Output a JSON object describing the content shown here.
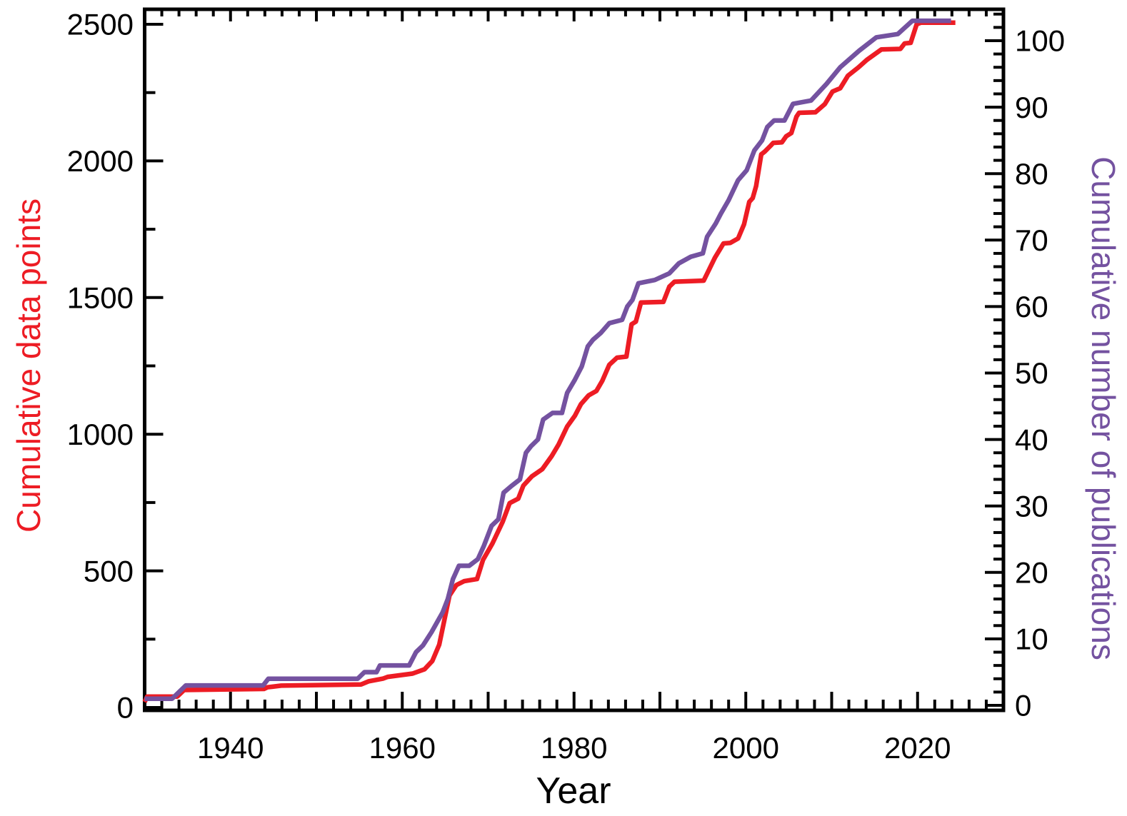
{
  "chart_data": {
    "type": "line",
    "title": "",
    "xlabel": "Year",
    "x_axis": {
      "range": [
        1930,
        2030
      ],
      "labeled_ticks": [
        1940,
        1960,
        1980,
        2000,
        2020
      ],
      "decade_tick_step": 10,
      "minor_tick_step": 2
    },
    "left_axis": {
      "label": "Cumulative data points",
      "color": "#ed1c24",
      "range": [
        0,
        2500
      ],
      "ticks": [
        0,
        500,
        1000,
        1500,
        2000,
        2500
      ],
      "minor_tick_step": 250
    },
    "right_axis": {
      "label": "Cumulative number of publications",
      "color": "#7452a0",
      "range": [
        0,
        104.5
      ],
      "ticks": [
        0,
        10,
        20,
        30,
        40,
        50,
        60,
        70,
        80,
        90,
        100
      ],
      "minor_tick_step": 2
    },
    "grid": false,
    "legend": "none",
    "series": [
      {
        "name": "Cumulative data points",
        "axis": "left",
        "color": "#ed1c24",
        "points": [
          [
            1930.0,
            20
          ],
          [
            1930.3,
            40
          ],
          [
            1933.8,
            40
          ],
          [
            1934.6,
            64
          ],
          [
            1943.9,
            68
          ],
          [
            1944.3,
            74
          ],
          [
            1945.9,
            80
          ],
          [
            1955.2,
            84
          ],
          [
            1956.1,
            96
          ],
          [
            1957.8,
            106
          ],
          [
            1958.3,
            112
          ],
          [
            1961.2,
            124
          ],
          [
            1962.6,
            140
          ],
          [
            1963.5,
            170
          ],
          [
            1964.3,
            230
          ],
          [
            1965.5,
            410
          ],
          [
            1966.3,
            448
          ],
          [
            1967.2,
            462
          ],
          [
            1968.7,
            470
          ],
          [
            1969.4,
            540
          ],
          [
            1970.5,
            600
          ],
          [
            1971.7,
            680
          ],
          [
            1972.5,
            748
          ],
          [
            1973.5,
            764
          ],
          [
            1974.1,
            812
          ],
          [
            1975.1,
            846
          ],
          [
            1976.3,
            872
          ],
          [
            1977.4,
            920
          ],
          [
            1978.2,
            962
          ],
          [
            1979.2,
            1028
          ],
          [
            1980.1,
            1068
          ],
          [
            1980.8,
            1110
          ],
          [
            1981.7,
            1142
          ],
          [
            1982.6,
            1158
          ],
          [
            1983.3,
            1196
          ],
          [
            1984.1,
            1254
          ],
          [
            1985.0,
            1280
          ],
          [
            1986.1,
            1284
          ],
          [
            1986.7,
            1402
          ],
          [
            1987.2,
            1412
          ],
          [
            1987.8,
            1482
          ],
          [
            1990.4,
            1484
          ],
          [
            1991.1,
            1540
          ],
          [
            1991.7,
            1558
          ],
          [
            1995.1,
            1562
          ],
          [
            1996.4,
            1646
          ],
          [
            1997.1,
            1682
          ],
          [
            1997.4,
            1698
          ],
          [
            1998.2,
            1700
          ],
          [
            1999.1,
            1716
          ],
          [
            1999.8,
            1768
          ],
          [
            2000.4,
            1850
          ],
          [
            2000.8,
            1864
          ],
          [
            2001.2,
            1908
          ],
          [
            2001.8,
            2024
          ],
          [
            2002.2,
            2034
          ],
          [
            2002.9,
            2056
          ],
          [
            2003.2,
            2066
          ],
          [
            2004.2,
            2068
          ],
          [
            2004.7,
            2090
          ],
          [
            2005.3,
            2102
          ],
          [
            2005.9,
            2162
          ],
          [
            2006.2,
            2176
          ],
          [
            2008.1,
            2178
          ],
          [
            2009.2,
            2208
          ],
          [
            2010.1,
            2254
          ],
          [
            2011.0,
            2266
          ],
          [
            2011.9,
            2312
          ],
          [
            2013.1,
            2342
          ],
          [
            2014.1,
            2370
          ],
          [
            2015.8,
            2408
          ],
          [
            2018.0,
            2410
          ],
          [
            2018.5,
            2430
          ],
          [
            2019.2,
            2432
          ],
          [
            2019.9,
            2500
          ],
          [
            2020.4,
            2506
          ],
          [
            2024.4,
            2506
          ]
        ]
      },
      {
        "name": "Cumulative number of publications",
        "axis": "right",
        "color": "#7452a0",
        "points": [
          [
            1930.0,
            1
          ],
          [
            1933.2,
            1
          ],
          [
            1934.8,
            3
          ],
          [
            1943.8,
            3
          ],
          [
            1944.4,
            4
          ],
          [
            1954.8,
            4
          ],
          [
            1955.6,
            5
          ],
          [
            1957.0,
            5
          ],
          [
            1957.4,
            6
          ],
          [
            1960.8,
            6
          ],
          [
            1961.6,
            8
          ],
          [
            1962.4,
            9
          ],
          [
            1963.4,
            11
          ],
          [
            1964.7,
            14
          ],
          [
            1965.3,
            16
          ],
          [
            1965.9,
            19
          ],
          [
            1966.6,
            21
          ],
          [
            1967.8,
            21
          ],
          [
            1968.8,
            22
          ],
          [
            1969.5,
            24
          ],
          [
            1970.4,
            27
          ],
          [
            1971.2,
            28
          ],
          [
            1971.8,
            32
          ],
          [
            1972.7,
            33
          ],
          [
            1973.7,
            34
          ],
          [
            1974.4,
            38
          ],
          [
            1975.0,
            39
          ],
          [
            1975.8,
            40
          ],
          [
            1976.4,
            43
          ],
          [
            1977.5,
            44
          ],
          [
            1978.6,
            44
          ],
          [
            1979.2,
            47
          ],
          [
            1980.1,
            49
          ],
          [
            1980.9,
            51
          ],
          [
            1981.6,
            54
          ],
          [
            1982.2,
            55
          ],
          [
            1983.1,
            56
          ],
          [
            1984.1,
            57.5
          ],
          [
            1985.6,
            58
          ],
          [
            1986.2,
            60
          ],
          [
            1986.8,
            61
          ],
          [
            1987.5,
            63.5
          ],
          [
            1989.4,
            64
          ],
          [
            1991.1,
            65
          ],
          [
            1992.2,
            66.5
          ],
          [
            1993.6,
            67.5
          ],
          [
            1995.0,
            68
          ],
          [
            1995.5,
            70.5
          ],
          [
            1996.5,
            72.5
          ],
          [
            1997.1,
            74
          ],
          [
            1998.0,
            76
          ],
          [
            1999.1,
            79
          ],
          [
            2000.1,
            80.5
          ],
          [
            2001.0,
            83.5
          ],
          [
            2001.9,
            85
          ],
          [
            2002.5,
            87
          ],
          [
            2003.3,
            88
          ],
          [
            2004.5,
            88
          ],
          [
            2004.9,
            89
          ],
          [
            2005.5,
            90.5
          ],
          [
            2007.6,
            91
          ],
          [
            2009.4,
            93.5
          ],
          [
            2011.0,
            96
          ],
          [
            2013.2,
            98.5
          ],
          [
            2015.2,
            100.5
          ],
          [
            2017.7,
            101
          ],
          [
            2019.4,
            103
          ],
          [
            2023.9,
            103
          ]
        ]
      }
    ]
  }
}
